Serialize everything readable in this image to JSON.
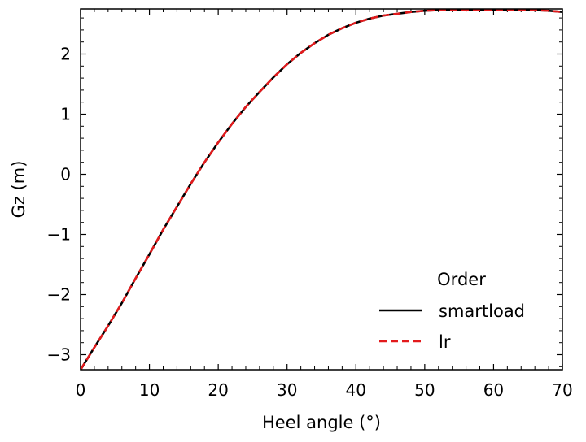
{
  "chart_data": {
    "type": "line",
    "xlabel": "Heel angle (°)",
    "ylabel": "Gz (m)",
    "xlim": [
      0,
      70
    ],
    "ylim": [
      -3.25,
      2.75
    ],
    "xticks": [
      "0",
      "10",
      "20",
      "30",
      "40",
      "50",
      "60",
      "70"
    ],
    "yticks": [
      "−3",
      "−2",
      "−1",
      "0",
      "1",
      "2"
    ],
    "grid": false,
    "legend": {
      "title": "Order",
      "placement": "lower-right"
    },
    "x": [
      0,
      2,
      4,
      6,
      8,
      10,
      12,
      14,
      16,
      18,
      20,
      22,
      24,
      26,
      28,
      30,
      32,
      34,
      36,
      38,
      40,
      42,
      44,
      46,
      48,
      50,
      52,
      54,
      56,
      58,
      60,
      62,
      64,
      66,
      68,
      70
    ],
    "series": [
      {
        "name": "smartload",
        "color": "#000000",
        "style": "solid",
        "values": [
          -3.25,
          -2.88,
          -2.52,
          -2.14,
          -1.73,
          -1.33,
          -0.92,
          -0.54,
          -0.16,
          0.2,
          0.53,
          0.84,
          1.12,
          1.37,
          1.61,
          1.83,
          2.02,
          2.18,
          2.32,
          2.43,
          2.52,
          2.59,
          2.64,
          2.67,
          2.7,
          2.72,
          2.73,
          2.74,
          2.74,
          2.74,
          2.74,
          2.74,
          2.74,
          2.73,
          2.72,
          2.7
        ]
      },
      {
        "name": "lr",
        "color": "#e31a1c",
        "style": "dashed",
        "values": [
          -3.25,
          -2.88,
          -2.52,
          -2.14,
          -1.73,
          -1.33,
          -0.92,
          -0.54,
          -0.16,
          0.2,
          0.53,
          0.84,
          1.12,
          1.37,
          1.61,
          1.83,
          2.02,
          2.18,
          2.32,
          2.43,
          2.52,
          2.59,
          2.64,
          2.67,
          2.7,
          2.72,
          2.73,
          2.74,
          2.74,
          2.74,
          2.74,
          2.74,
          2.74,
          2.73,
          2.72,
          2.7
        ]
      }
    ]
  }
}
